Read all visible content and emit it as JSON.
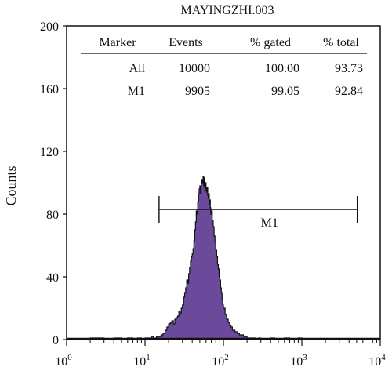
{
  "chart_data": {
    "type": "area",
    "title": "MAYINGZHI.003",
    "xlabel": "",
    "ylabel": "Counts",
    "xscale": "log",
    "xlim": [
      1,
      10000
    ],
    "ylim": [
      0,
      200
    ],
    "grid": false,
    "y_ticks": [
      "0",
      "40",
      "80",
      "120",
      "160",
      "200"
    ],
    "x_ticks": [
      {
        "base": "10",
        "exp": "0"
      },
      {
        "base": "10",
        "exp": "1"
      },
      {
        "base": "10",
        "exp": "2"
      },
      {
        "base": "10",
        "exp": "3"
      },
      {
        "base": "10",
        "exp": "4"
      }
    ],
    "fill_color": "#6b4a9b",
    "outline_color": "#111111",
    "stats_table": {
      "headers": [
        "Marker",
        "Events",
        "% gated",
        "% total"
      ],
      "rows": [
        [
          "All",
          "10000",
          "100.00",
          "93.73"
        ],
        [
          "M1",
          "9905",
          "99.05",
          "92.84"
        ]
      ]
    },
    "marker": {
      "label": "M1",
      "x_start": 15.1,
      "x_end": 5090,
      "y": 83
    },
    "histogram": {
      "x": [
        1.5,
        2,
        3,
        4,
        5,
        6,
        7,
        8,
        9,
        10,
        11,
        12,
        13,
        14,
        15,
        16,
        17,
        18,
        19,
        20,
        21,
        22,
        23,
        24,
        25,
        26,
        27,
        28,
        29,
        30,
        31,
        32,
        33,
        34,
        35,
        36,
        37,
        38,
        39,
        40,
        41,
        42,
        43,
        44,
        45,
        46,
        47,
        48,
        49,
        50,
        51,
        52,
        53,
        54,
        55,
        56,
        57,
        58,
        59,
        60,
        61,
        62,
        63,
        64,
        65,
        66,
        67,
        68,
        69,
        70,
        72,
        74,
        76,
        78,
        80,
        82,
        84,
        86,
        88,
        90,
        92,
        94,
        96,
        98,
        100,
        105,
        110,
        115,
        120,
        125,
        130,
        140,
        150,
        160,
        170,
        180,
        190,
        200,
        220,
        240,
        260,
        280,
        300,
        350,
        400,
        450,
        500,
        600,
        700,
        800,
        900,
        1000,
        1500,
        2000,
        3000
      ],
      "counts": [
        0,
        1,
        0,
        1,
        0,
        1,
        0,
        1,
        0,
        1,
        1,
        2,
        1,
        2,
        2,
        3,
        4,
        6,
        8,
        10,
        11,
        12,
        10,
        13,
        14,
        15,
        18,
        17,
        20,
        22,
        27,
        30,
        33,
        38,
        36,
        42,
        46,
        50,
        53,
        55,
        58,
        63,
        70,
        75,
        82,
        80,
        88,
        93,
        96,
        98,
        93,
        100,
        102,
        100,
        104,
        98,
        103,
        95,
        100,
        97,
        94,
        97,
        92,
        90,
        93,
        86,
        89,
        84,
        80,
        82,
        76,
        72,
        66,
        62,
        57,
        53,
        48,
        45,
        40,
        38,
        33,
        30,
        26,
        22,
        20,
        16,
        13,
        11,
        9,
        8,
        6,
        5,
        4,
        3,
        3,
        2,
        2,
        1,
        1,
        1,
        0,
        1,
        0,
        0,
        1,
        0,
        0,
        1,
        0,
        0,
        1,
        0,
        0,
        0,
        0
      ]
    }
  }
}
